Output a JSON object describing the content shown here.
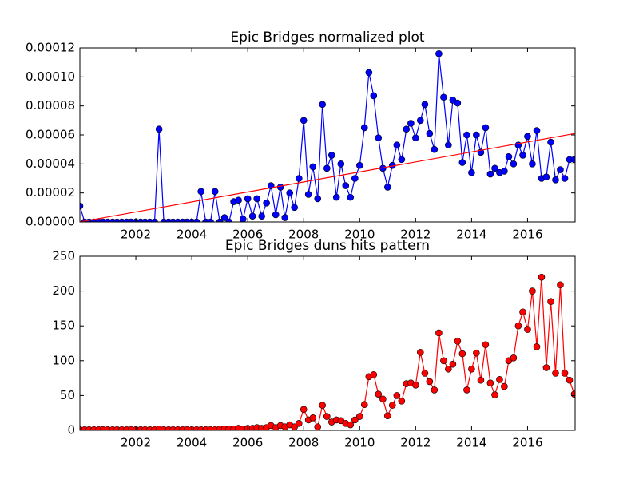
{
  "chart_data": [
    {
      "type": "line",
      "title": "Epic Bridges normalized plot",
      "x": [
        2000,
        2000.17,
        2000.33,
        2000.5,
        2000.67,
        2000.83,
        2001,
        2001.17,
        2001.33,
        2001.5,
        2001.67,
        2001.83,
        2002,
        2002.17,
        2002.33,
        2002.5,
        2002.67,
        2002.83,
        2003,
        2003.17,
        2003.33,
        2003.5,
        2003.67,
        2003.83,
        2004,
        2004.17,
        2004.33,
        2004.5,
        2004.67,
        2004.83,
        2005,
        2005.17,
        2005.33,
        2005.5,
        2005.67,
        2005.83,
        2006,
        2006.17,
        2006.33,
        2006.5,
        2006.67,
        2006.83,
        2007,
        2007.17,
        2007.33,
        2007.5,
        2007.67,
        2007.83,
        2008,
        2008.17,
        2008.33,
        2008.5,
        2008.67,
        2008.83,
        2009,
        2009.17,
        2009.33,
        2009.5,
        2009.67,
        2009.83,
        2010,
        2010.17,
        2010.33,
        2010.5,
        2010.67,
        2010.83,
        2011,
        2011.17,
        2011.33,
        2011.5,
        2011.67,
        2011.83,
        2012,
        2012.17,
        2012.33,
        2012.5,
        2012.67,
        2012.83,
        2013,
        2013.17,
        2013.33,
        2013.5,
        2013.67,
        2013.83,
        2014,
        2014.17,
        2014.33,
        2014.5,
        2014.67,
        2014.83,
        2015,
        2015.17,
        2015.33,
        2015.5,
        2015.67,
        2015.83,
        2016,
        2016.17,
        2016.33,
        2016.5,
        2016.67,
        2016.83,
        2017,
        2017.17,
        2017.33,
        2017.5,
        2017.67
      ],
      "series": [
        {
          "color": "#0000ff",
          "values": [
            1.1e-05,
            0,
            0,
            0,
            0,
            0,
            0,
            0,
            0,
            0,
            0,
            0,
            0,
            0,
            0,
            0,
            0,
            6.4e-05,
            0,
            0,
            0,
            0,
            0,
            0,
            0,
            0,
            2.1e-05,
            0,
            0,
            2.1e-05,
            0,
            3e-06,
            0,
            1.4e-05,
            1.5e-05,
            2e-06,
            1.6e-05,
            4e-06,
            1.6e-05,
            4e-06,
            1.3e-05,
            2.5e-05,
            5e-06,
            2.4e-05,
            3e-06,
            2e-05,
            1e-05,
            3e-05,
            7e-05,
            1.9e-05,
            3.8e-05,
            1.6e-05,
            8.1e-05,
            3.7e-05,
            4.6e-05,
            1.7e-05,
            4e-05,
            2.5e-05,
            1.7e-05,
            3e-05,
            3.9e-05,
            6.5e-05,
            0.000103,
            8.7e-05,
            5.8e-05,
            3.7e-05,
            2.4e-05,
            3.9e-05,
            5.3e-05,
            4.3e-05,
            6.4e-05,
            6.8e-05,
            5.8e-05,
            7e-05,
            8.1e-05,
            6.1e-05,
            5e-05,
            0.000116,
            8.6e-05,
            5.3e-05,
            8.4e-05,
            8.2e-05,
            4.1e-05,
            6e-05,
            3.4e-05,
            6e-05,
            4.8e-05,
            6.5e-05,
            3.3e-05,
            3.7e-05,
            3.4e-05,
            3.5e-05,
            4.5e-05,
            4e-05,
            5.3e-05,
            4.6e-05,
            5.9e-05,
            4e-05,
            6.3e-05,
            3e-05,
            3.1e-05,
            5.5e-05,
            2.9e-05,
            3.6e-05,
            3e-05,
            4.3e-05,
            4.3e-05
          ]
        }
      ],
      "trend": {
        "color": "#ff0000",
        "x": [
          2000,
          2017.7
        ],
        "values": [
          0,
          6.1e-05
        ]
      },
      "xlim": [
        2000,
        2017.7
      ],
      "xticks": [
        2002,
        2004,
        2006,
        2008,
        2010,
        2012,
        2014,
        2016
      ],
      "ylim": [
        0,
        0.00012
      ],
      "yticks": [
        {
          "value": 0,
          "label": "0.00000"
        },
        {
          "value": 2e-05,
          "label": "0.00002"
        },
        {
          "value": 4e-05,
          "label": "0.00004"
        },
        {
          "value": 6e-05,
          "label": "0.00006"
        },
        {
          "value": 8e-05,
          "label": "0.00008"
        },
        {
          "value": 0.0001,
          "label": "0.00010"
        },
        {
          "value": 0.00012,
          "label": "0.00012"
        }
      ]
    },
    {
      "type": "line",
      "title": "Epic Bridges duns hits pattern",
      "x": [
        2000,
        2000.17,
        2000.33,
        2000.5,
        2000.67,
        2000.83,
        2001,
        2001.17,
        2001.33,
        2001.5,
        2001.67,
        2001.83,
        2002,
        2002.17,
        2002.33,
        2002.5,
        2002.67,
        2002.83,
        2003,
        2003.17,
        2003.33,
        2003.5,
        2003.67,
        2003.83,
        2004,
        2004.17,
        2004.33,
        2004.5,
        2004.67,
        2004.83,
        2005,
        2005.17,
        2005.33,
        2005.5,
        2005.67,
        2005.83,
        2006,
        2006.17,
        2006.33,
        2006.5,
        2006.67,
        2006.83,
        2007,
        2007.17,
        2007.33,
        2007.5,
        2007.67,
        2007.83,
        2008,
        2008.17,
        2008.33,
        2008.5,
        2008.67,
        2008.83,
        2009,
        2009.17,
        2009.33,
        2009.5,
        2009.67,
        2009.83,
        2010,
        2010.17,
        2010.33,
        2010.5,
        2010.67,
        2010.83,
        2011,
        2011.17,
        2011.33,
        2011.5,
        2011.67,
        2011.83,
        2012,
        2012.17,
        2012.33,
        2012.5,
        2012.67,
        2012.83,
        2013,
        2013.17,
        2013.33,
        2013.5,
        2013.67,
        2013.83,
        2014,
        2014.17,
        2014.33,
        2014.5,
        2014.67,
        2014.83,
        2015,
        2015.17,
        2015.33,
        2015.5,
        2015.67,
        2015.83,
        2016,
        2016.17,
        2016.33,
        2016.5,
        2016.67,
        2016.83,
        2017,
        2017.17,
        2017.33,
        2017.5,
        2017.67
      ],
      "series": [
        {
          "color": "#ff0000",
          "values": [
            1,
            1,
            1,
            1,
            1,
            1,
            1,
            1,
            1,
            1,
            1,
            1,
            1,
            1,
            1,
            1,
            1,
            2,
            1,
            1,
            1,
            1,
            1,
            1,
            1,
            1,
            1,
            1,
            1,
            1,
            2,
            2,
            2,
            2,
            3,
            2,
            3,
            3,
            4,
            3,
            4,
            7,
            4,
            7,
            5,
            8,
            5,
            10,
            30,
            15,
            18,
            5,
            36,
            20,
            12,
            15,
            14,
            10,
            8,
            15,
            20,
            37,
            77,
            80,
            52,
            45,
            21,
            36,
            50,
            42,
            67,
            68,
            65,
            112,
            82,
            70,
            58,
            140,
            100,
            88,
            95,
            128,
            110,
            58,
            88,
            111,
            72,
            123,
            68,
            51,
            73,
            63,
            100,
            104,
            150,
            170,
            145,
            200,
            120,
            220,
            90,
            185,
            82,
            209,
            82,
            72,
            52
          ]
        }
      ],
      "xlim": [
        2000,
        2017.7
      ],
      "xticks": [
        2002,
        2004,
        2006,
        2008,
        2010,
        2012,
        2014,
        2016
      ],
      "ylim": [
        0,
        250
      ],
      "yticks": [
        0,
        50,
        100,
        150,
        200,
        250
      ]
    }
  ]
}
